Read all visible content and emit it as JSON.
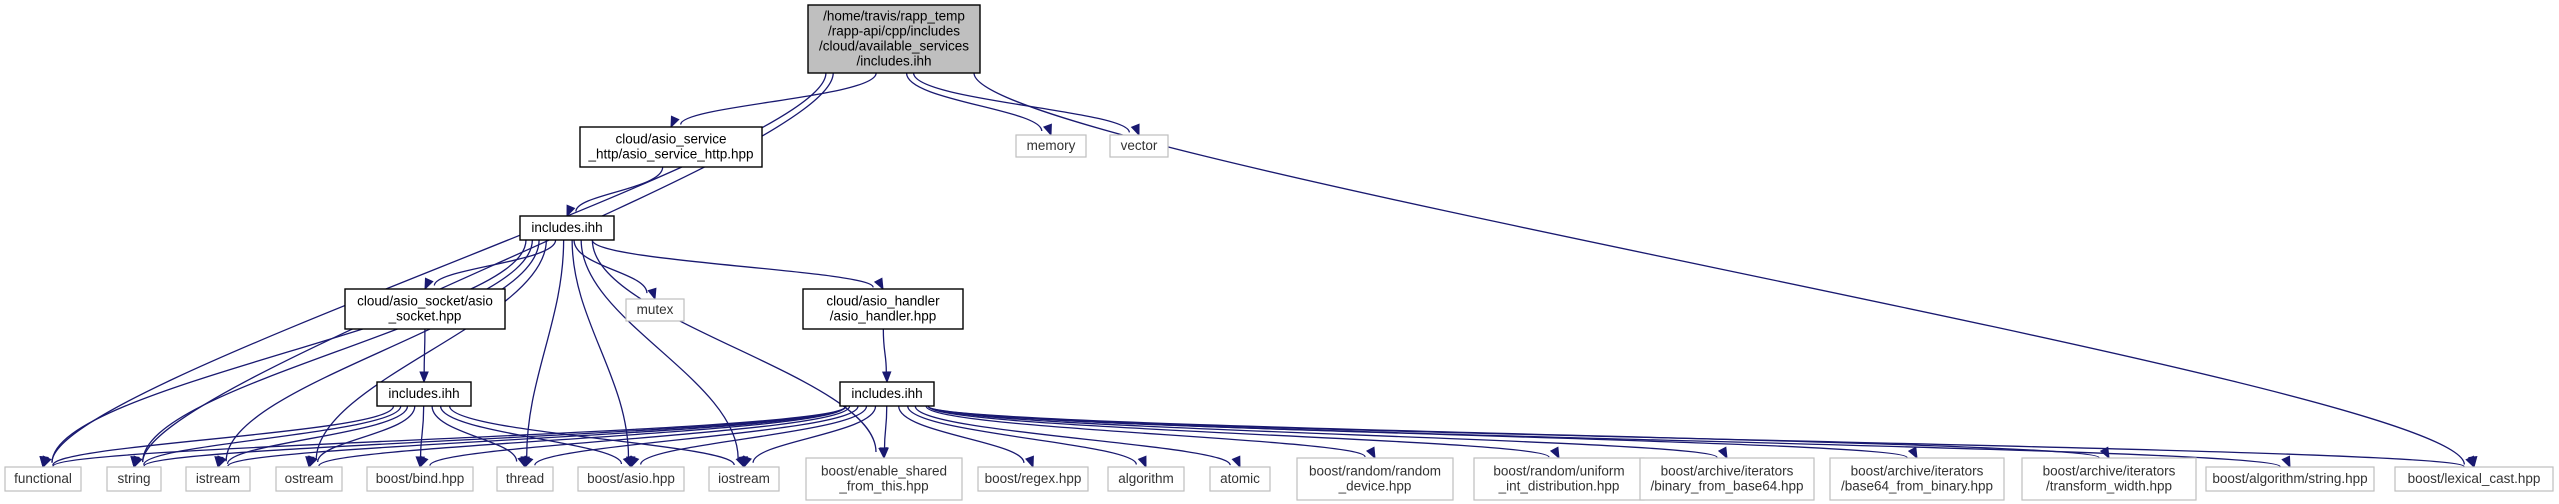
{
  "graph": {
    "nodes": [
      {
        "id": "root",
        "kind": "root",
        "lines": [
          "/home/travis/rapp_temp",
          "/rapp-api/cpp/includes",
          "/cloud/available_services",
          "/includes.ihh"
        ]
      },
      {
        "id": "svc_http",
        "kind": "file",
        "lines": [
          "cloud/asio_service",
          "_http/asio_service_http.hpp"
        ]
      },
      {
        "id": "memory",
        "kind": "ext",
        "lines": [
          "memory"
        ]
      },
      {
        "id": "vector",
        "kind": "ext",
        "lines": [
          "vector"
        ]
      },
      {
        "id": "inc2",
        "kind": "file",
        "lines": [
          "includes.ihh"
        ]
      },
      {
        "id": "mutex",
        "kind": "ext",
        "lines": [
          "mutex"
        ]
      },
      {
        "id": "socket",
        "kind": "file",
        "lines": [
          "cloud/asio_socket/asio",
          "_socket.hpp"
        ]
      },
      {
        "id": "handler",
        "kind": "file",
        "lines": [
          "cloud/asio_handler",
          "/asio_handler.hpp"
        ]
      },
      {
        "id": "inc3",
        "kind": "file",
        "lines": [
          "includes.ihh"
        ]
      },
      {
        "id": "inc4",
        "kind": "file",
        "lines": [
          "includes.ihh"
        ]
      },
      {
        "id": "functional",
        "kind": "ext",
        "lines": [
          "functional"
        ]
      },
      {
        "id": "string",
        "kind": "ext",
        "lines": [
          "string"
        ]
      },
      {
        "id": "istream",
        "kind": "ext",
        "lines": [
          "istream"
        ]
      },
      {
        "id": "ostream",
        "kind": "ext",
        "lines": [
          "ostream"
        ]
      },
      {
        "id": "bind",
        "kind": "ext",
        "lines": [
          "boost/bind.hpp"
        ]
      },
      {
        "id": "thread",
        "kind": "ext",
        "lines": [
          "thread"
        ]
      },
      {
        "id": "asio",
        "kind": "ext",
        "lines": [
          "boost/asio.hpp"
        ]
      },
      {
        "id": "iostream",
        "kind": "ext",
        "lines": [
          "iostream"
        ]
      },
      {
        "id": "esft",
        "kind": "ext",
        "lines": [
          "boost/enable_shared",
          "_from_this.hpp"
        ]
      },
      {
        "id": "regex",
        "kind": "ext",
        "lines": [
          "boost/regex.hpp"
        ]
      },
      {
        "id": "algorithm",
        "kind": "ext",
        "lines": [
          "algorithm"
        ]
      },
      {
        "id": "atomic",
        "kind": "ext",
        "lines": [
          "atomic"
        ]
      },
      {
        "id": "randdev",
        "kind": "ext",
        "lines": [
          "boost/random/random",
          "_device.hpp"
        ]
      },
      {
        "id": "uniform",
        "kind": "ext",
        "lines": [
          "boost/random/uniform",
          "_int_distribution.hpp"
        ]
      },
      {
        "id": "binfrom64",
        "kind": "ext",
        "lines": [
          "boost/archive/iterators",
          "/binary_from_base64.hpp"
        ]
      },
      {
        "id": "b64frombin",
        "kind": "ext",
        "lines": [
          "boost/archive/iterators",
          "/base64_from_binary.hpp"
        ]
      },
      {
        "id": "transform",
        "kind": "ext",
        "lines": [
          "boost/archive/iterators",
          "/transform_width.hpp"
        ]
      },
      {
        "id": "algostring",
        "kind": "ext",
        "lines": [
          "boost/algorithm/string.hpp"
        ]
      },
      {
        "id": "lexcast",
        "kind": "ext",
        "lines": [
          "boost/lexical_cast.hpp"
        ]
      }
    ],
    "edges": [
      [
        "root",
        "svc_http"
      ],
      [
        "root",
        "memory"
      ],
      [
        "root",
        "vector"
      ],
      [
        "root",
        "functional"
      ],
      [
        "root",
        "string"
      ],
      [
        "root",
        "lexcast"
      ],
      [
        "svc_http",
        "inc2"
      ],
      [
        "inc2",
        "socket"
      ],
      [
        "inc2",
        "handler"
      ],
      [
        "inc2",
        "mutex"
      ],
      [
        "inc2",
        "functional"
      ],
      [
        "inc2",
        "string"
      ],
      [
        "inc2",
        "istream"
      ],
      [
        "inc2",
        "ostream"
      ],
      [
        "inc2",
        "thread"
      ],
      [
        "inc2",
        "asio"
      ],
      [
        "inc2",
        "iostream"
      ],
      [
        "inc2",
        "esft"
      ],
      [
        "socket",
        "inc3"
      ],
      [
        "inc3",
        "functional"
      ],
      [
        "inc3",
        "string"
      ],
      [
        "inc3",
        "istream"
      ],
      [
        "inc3",
        "ostream"
      ],
      [
        "inc3",
        "bind"
      ],
      [
        "inc3",
        "thread"
      ],
      [
        "inc3",
        "asio"
      ],
      [
        "inc3",
        "iostream"
      ],
      [
        "handler",
        "inc4"
      ],
      [
        "inc4",
        "functional"
      ],
      [
        "inc4",
        "string"
      ],
      [
        "inc4",
        "istream"
      ],
      [
        "inc4",
        "ostream"
      ],
      [
        "inc4",
        "bind"
      ],
      [
        "inc4",
        "thread"
      ],
      [
        "inc4",
        "asio"
      ],
      [
        "inc4",
        "iostream"
      ],
      [
        "inc4",
        "esft"
      ],
      [
        "inc4",
        "regex"
      ],
      [
        "inc4",
        "algorithm"
      ],
      [
        "inc4",
        "atomic"
      ],
      [
        "inc4",
        "randdev"
      ],
      [
        "inc4",
        "uniform"
      ],
      [
        "inc4",
        "binfrom64"
      ],
      [
        "inc4",
        "b64frombin"
      ],
      [
        "inc4",
        "transform"
      ],
      [
        "inc4",
        "algostring"
      ],
      [
        "inc4",
        "lexcast"
      ]
    ],
    "colors": {
      "edge": "#191970",
      "root_fill": "#bfbfbf",
      "ext_border": "#bfbfbf",
      "node_border": "#000000"
    }
  }
}
